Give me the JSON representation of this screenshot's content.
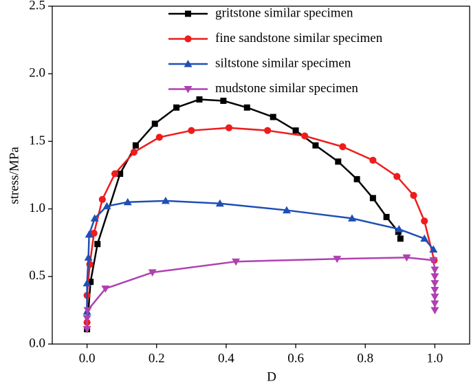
{
  "chart_data": {
    "type": "line",
    "xlabel": "D",
    "ylabel": "stress/MPa",
    "xlim": [
      -0.1,
      1.1
    ],
    "ylim": [
      0,
      2.5
    ],
    "xticks": [
      {
        "value": 0,
        "label": "0.0"
      },
      0.2,
      0.4,
      0.6,
      0.8,
      {
        "value": 1,
        "label": "1.0"
      }
    ],
    "yticks": [
      {
        "value": 0,
        "label": "0.0"
      },
      0.5,
      {
        "value": 1,
        "label": "1.0"
      },
      1.5,
      {
        "value": 2,
        "label": "2.0"
      },
      2.5
    ],
    "legend": "upper center",
    "series": [
      {
        "name": "gritstone similar specimen",
        "color": "#000000",
        "marker": "square",
        "x": [
          0,
          0.01,
          0.03,
          0.095,
          0.14,
          0.195,
          0.257,
          0.323,
          0.392,
          0.46,
          0.535,
          0.6,
          0.657,
          0.722,
          0.776,
          0.822,
          0.861,
          0.895,
          0.901
        ],
        "values": [
          0.11,
          0.46,
          0.74,
          1.26,
          1.47,
          1.63,
          1.75,
          1.81,
          1.8,
          1.75,
          1.68,
          1.58,
          1.47,
          1.35,
          1.22,
          1.08,
          0.94,
          0.83,
          0.78
        ]
      },
      {
        "name": "fine sandstone similar specimen",
        "color": "#ee1c1c",
        "marker": "circle",
        "x": [
          0,
          0,
          0.008,
          0.02,
          0.044,
          0.08,
          0.135,
          0.208,
          0.3,
          0.408,
          0.519,
          0.626,
          0.735,
          0.822,
          0.891,
          0.939,
          0.97,
          0.998
        ],
        "values": [
          0.16,
          0.36,
          0.59,
          0.82,
          1.07,
          1.26,
          1.42,
          1.53,
          1.58,
          1.6,
          1.58,
          1.54,
          1.46,
          1.36,
          1.24,
          1.1,
          0.91,
          0.62
        ]
      },
      {
        "name": "siltstone similar specimen",
        "color": "#1f4fb5",
        "marker": "triangle-up",
        "x": [
          0,
          0,
          0.004,
          0.006,
          0.022,
          0.057,
          0.117,
          0.226,
          0.382,
          0.574,
          0.762,
          0.897,
          0.97,
          0.996
        ],
        "values": [
          0.24,
          0.45,
          0.64,
          0.81,
          0.93,
          1.02,
          1.05,
          1.06,
          1.04,
          0.99,
          0.93,
          0.85,
          0.78,
          0.7
        ]
      },
      {
        "name": "mudstone similar specimen",
        "color": "#b040b0",
        "marker": "triangle-down",
        "x": [
          0,
          0,
          0.002,
          0.053,
          0.188,
          0.428,
          0.719,
          0.919,
          0.996,
          1,
          1,
          1,
          1,
          1,
          1,
          1
        ],
        "values": [
          0.11,
          0.19,
          0.25,
          0.41,
          0.53,
          0.61,
          0.63,
          0.64,
          0.62,
          0.55,
          0.5,
          0.45,
          0.4,
          0.35,
          0.3,
          0.25
        ]
      }
    ]
  }
}
